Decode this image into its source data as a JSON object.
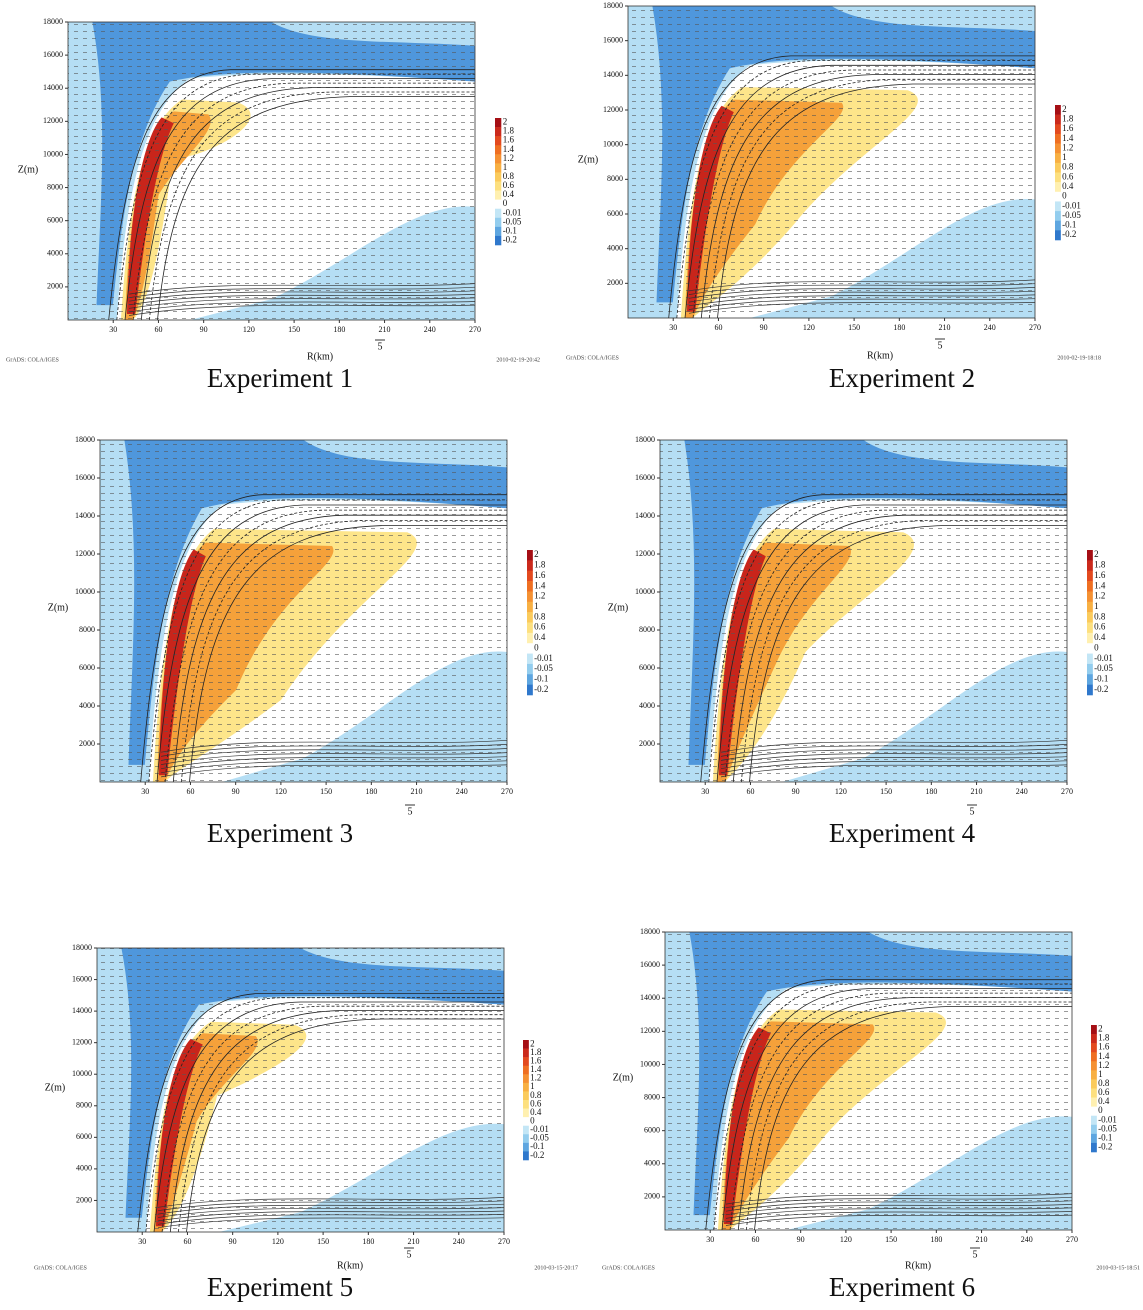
{
  "colorbar_colors": [
    "#a50f15",
    "#cb2a1c",
    "#e34a1f",
    "#ef6f22",
    "#f59133",
    "#f8b043",
    "#fbcb5c",
    "#fde07f",
    "#fff0b0",
    "#ffffff",
    "#c3e6f6",
    "#93cdee",
    "#5ea6e0",
    "#2f78cc"
  ],
  "figures": [
    {
      "caption": "Experiment 1",
      "y_label": "Z(m)",
      "x_label": "R(km)",
      "vector_key": "5",
      "footer_left": "GrADS: COLA/IGES",
      "footer_right": "2010-02-19-20:42",
      "xlim": [
        0,
        270
      ],
      "ylim": [
        0,
        18000
      ],
      "xticks": [
        30,
        60,
        90,
        120,
        150,
        180,
        210,
        240,
        270
      ],
      "yticks": [
        2000,
        4000,
        6000,
        8000,
        10000,
        12000,
        14000,
        16000,
        18000
      ],
      "colorbar": [
        "2",
        "1.8",
        "1.6",
        "1.4",
        "1.2",
        "1",
        "0.8",
        "0.6",
        "0.4",
        "0",
        "-0.01",
        "-0.05",
        "-0.1",
        "-0.2"
      ]
    },
    {
      "caption": "Experiment 2",
      "y_label": "Z(m)",
      "x_label": "R(km)",
      "vector_key": "5",
      "footer_left": "GrADS: COLA/IGES",
      "footer_right": "2010-02-19-18:18",
      "xlim": [
        0,
        270
      ],
      "ylim": [
        0,
        18000
      ],
      "xticks": [
        30,
        60,
        90,
        120,
        150,
        180,
        210,
        240,
        270
      ],
      "yticks": [
        2000,
        4000,
        6000,
        8000,
        10000,
        12000,
        14000,
        16000,
        18000
      ],
      "colorbar": [
        "2",
        "1.8",
        "1.6",
        "1.4",
        "1.2",
        "1",
        "0.8",
        "0.6",
        "0.4",
        "0",
        "-0.01",
        "-0.05",
        "-0.1",
        "-0.2"
      ]
    },
    {
      "caption": "Experiment 3",
      "y_label": "Z(m)",
      "vector_key": "5",
      "xlim": [
        0,
        270
      ],
      "ylim": [
        0,
        18000
      ],
      "xticks": [
        30,
        60,
        90,
        120,
        150,
        180,
        210,
        240,
        270
      ],
      "yticks": [
        2000,
        4000,
        6000,
        8000,
        10000,
        12000,
        14000,
        16000,
        18000
      ],
      "colorbar": [
        "2",
        "1.8",
        "1.6",
        "1.4",
        "1.2",
        "1",
        "0.8",
        "0.6",
        "0.4",
        "0",
        "-0.01",
        "-0.05",
        "-0.1",
        "-0.2"
      ]
    },
    {
      "caption": "Experiment 4",
      "y_label": "Z(m)",
      "vector_key": "5",
      "xlim": [
        0,
        270
      ],
      "ylim": [
        0,
        18000
      ],
      "xticks": [
        30,
        60,
        90,
        120,
        150,
        180,
        210,
        240,
        270
      ],
      "yticks": [
        2000,
        4000,
        6000,
        8000,
        10000,
        12000,
        14000,
        16000,
        18000
      ],
      "colorbar": [
        "2",
        "1.8",
        "1.6",
        "1.4",
        "1.2",
        "1",
        "0.8",
        "0.6",
        "0.4",
        "0",
        "-0.01",
        "-0.05",
        "-0.1",
        "-0.2"
      ]
    },
    {
      "caption": "Experiment 5",
      "y_label": "Z(m)",
      "x_label": "R(km)",
      "vector_key": "5",
      "footer_left": "GrADS: COLA/IGES",
      "footer_right": "2010-03-15-20:17",
      "xlim": [
        0,
        270
      ],
      "ylim": [
        0,
        18000
      ],
      "xticks": [
        30,
        60,
        90,
        120,
        150,
        180,
        210,
        240,
        270
      ],
      "yticks": [
        2000,
        4000,
        6000,
        8000,
        10000,
        12000,
        14000,
        16000,
        18000
      ],
      "colorbar": [
        "2",
        "1.8",
        "1.6",
        "1.4",
        "1.2",
        "1",
        "0.8",
        "0.6",
        "0.4",
        "0",
        "-0.01",
        "-0.05",
        "-0.1",
        "-0.2"
      ]
    },
    {
      "caption": "Experiment 6",
      "y_label": "Z(m)",
      "x_label": "R(km)",
      "vector_key": "5",
      "footer_left": "GrADS: COLA/IGES",
      "footer_right": "2010-03-15-18:51",
      "xlim": [
        0,
        270
      ],
      "ylim": [
        0,
        18000
      ],
      "xticks": [
        30,
        60,
        90,
        120,
        150,
        180,
        210,
        240,
        270
      ],
      "yticks": [
        2000,
        4000,
        6000,
        8000,
        10000,
        12000,
        14000,
        16000,
        18000
      ],
      "colorbar": [
        "2",
        "1.8",
        "1.6",
        "1.4",
        "1.2",
        "1",
        "0.8",
        "0.6",
        "0.4",
        "0",
        "-0.01",
        "-0.05",
        "-0.1",
        "-0.2"
      ]
    }
  ]
}
